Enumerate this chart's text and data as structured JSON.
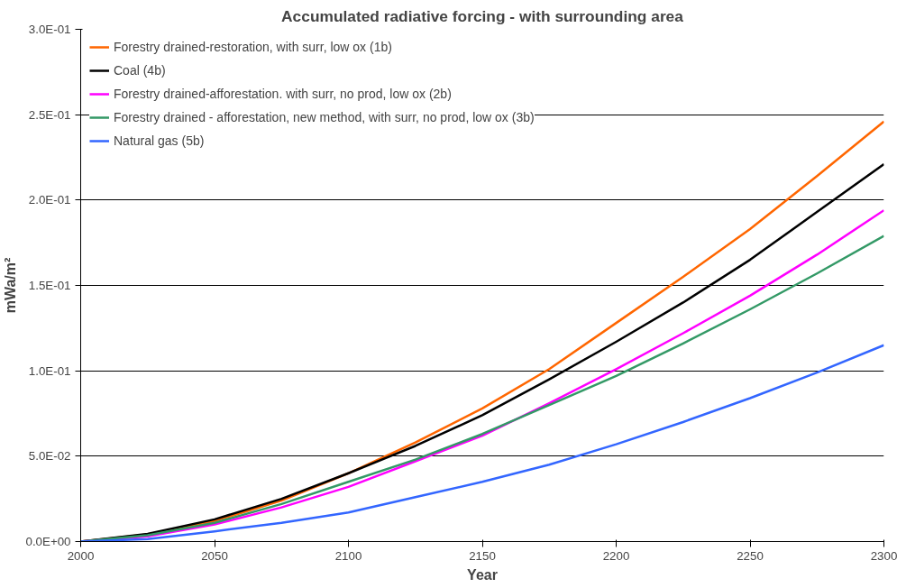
{
  "chart_data": {
    "type": "line",
    "title": "Accumulated radiative forcing - with surrounding area",
    "xlabel": "Year",
    "ylabel": "mWa/m²",
    "x": [
      2000,
      2025,
      2050,
      2075,
      2100,
      2125,
      2150,
      2175,
      2200,
      2225,
      2250,
      2275,
      2300
    ],
    "series": [
      {
        "name": "Forestry drained-restoration, with surr, low ox (1b)",
        "color": "#ff6600",
        "values": [
          0,
          0.0042,
          0.012,
          0.024,
          0.04,
          0.058,
          0.078,
          0.101,
          0.128,
          0.155,
          0.183,
          0.214,
          0.246
        ]
      },
      {
        "name": "Coal (4b)",
        "color": "#000000",
        "values": [
          0,
          0.0045,
          0.013,
          0.025,
          0.04,
          0.056,
          0.074,
          0.095,
          0.117,
          0.14,
          0.165,
          0.193,
          0.221
        ]
      },
      {
        "name": "Forestry drained-afforestation. with surr, no prod, low ox (2b)",
        "color": "#ff00ff",
        "values": [
          0,
          0.003,
          0.01,
          0.02,
          0.032,
          0.047,
          0.062,
          0.081,
          0.101,
          0.122,
          0.144,
          0.168,
          0.194
        ]
      },
      {
        "name": "Forestry drained - afforestation, new method, with surr, no prod, low ox (3b)",
        "color": "#339966",
        "values": [
          0,
          0.0037,
          0.011,
          0.022,
          0.035,
          0.048,
          0.063,
          0.08,
          0.097,
          0.116,
          0.136,
          0.157,
          0.179
        ]
      },
      {
        "name": "Natural gas (5b)",
        "color": "#3366ff",
        "values": [
          0,
          0.0015,
          0.006,
          0.011,
          0.017,
          0.026,
          0.035,
          0.045,
          0.057,
          0.07,
          0.084,
          0.099,
          0.115
        ]
      }
    ],
    "xlim": [
      2000,
      2300
    ],
    "xticks": [
      2000,
      2050,
      2100,
      2150,
      2200,
      2250,
      2300
    ],
    "ylim": [
      0,
      0.3
    ],
    "yticks": [
      {
        "value": 0,
        "label": "0.0E+00"
      },
      {
        "value": 0.05,
        "label": "5.0E-02"
      },
      {
        "value": 0.1,
        "label": "1.0E-01"
      },
      {
        "value": 0.15,
        "label": "1.5E-01"
      },
      {
        "value": 0.2,
        "label": "2.0E-01"
      },
      {
        "value": 0.25,
        "label": "2.5E-01"
      },
      {
        "value": 0.3,
        "label": "3.0E-01"
      }
    ],
    "grid": "y",
    "legend": "top left",
    "marker": "none",
    "line_style": "solid"
  }
}
